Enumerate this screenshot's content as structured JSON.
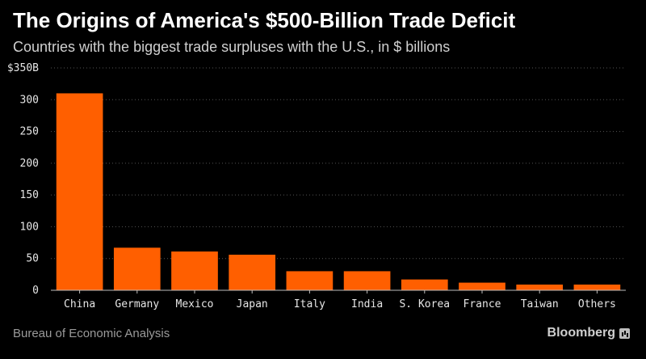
{
  "header": {
    "title": "The Origins of America's $500-Billion Trade Deficit",
    "subtitle": "Countries with the biggest trade surpluses with the U.S., in $ billions"
  },
  "footer": {
    "source": "Bureau of Economic Analysis",
    "brand": "Bloomberg"
  },
  "colors": {
    "bar": "#ff5f00",
    "background": "#000000",
    "grid": "#555555"
  },
  "chart_data": {
    "type": "bar",
    "title": "The Origins of America's $500-Billion Trade Deficit",
    "subtitle": "Countries with the biggest trade surpluses with the U.S., in $ billions",
    "xlabel": "",
    "ylabel": "",
    "categories": [
      "China",
      "Germany",
      "Mexico",
      "Japan",
      "Italy",
      "India",
      "S. Korea",
      "France",
      "Taiwan",
      "Others"
    ],
    "values": [
      310,
      67,
      61,
      56,
      30,
      30,
      17,
      12,
      9,
      9
    ],
    "ylim": [
      0,
      350
    ],
    "yticks": [
      0,
      50,
      100,
      150,
      200,
      250,
      300,
      350
    ],
    "ytick_labels": [
      "0",
      "50",
      "100",
      "150",
      "200",
      "250",
      "300",
      "$350B"
    ],
    "grid": true,
    "legend": "none"
  }
}
